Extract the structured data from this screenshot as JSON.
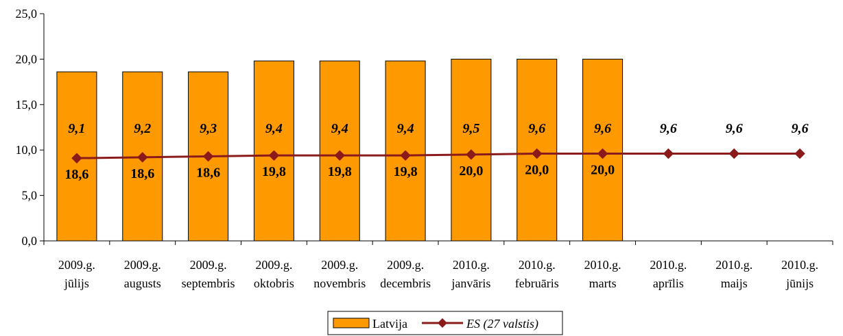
{
  "chart_data": {
    "type": "bar",
    "categories": [
      [
        "2009.g.",
        "jūlijs"
      ],
      [
        "2009.g.",
        "augusts"
      ],
      [
        "2009.g.",
        "septembris"
      ],
      [
        "2009.g.",
        "oktobris"
      ],
      [
        "2009.g.",
        "novembris"
      ],
      [
        "2009.g.",
        "decembris"
      ],
      [
        "2010.g.",
        "janvāris"
      ],
      [
        "2010.g.",
        "februāris"
      ],
      [
        "2010.g.",
        "marts"
      ],
      [
        "2010.g.",
        "aprīlis"
      ],
      [
        "2010.g.",
        "maijs"
      ],
      [
        "2010.g.",
        "jūnijs"
      ]
    ],
    "series": [
      {
        "name": "Latvija",
        "type": "bar",
        "color": "#FF9900",
        "values": [
          18.6,
          18.6,
          18.6,
          19.8,
          19.8,
          19.8,
          20.0,
          20.0,
          20.0,
          null,
          null,
          null
        ],
        "labels": [
          "18,6",
          "18,6",
          "18,6",
          "19,8",
          "19,8",
          "19,8",
          "20,0",
          "20,0",
          "20,0",
          null,
          null,
          null
        ]
      },
      {
        "name": "ES (27 valstis)",
        "type": "line",
        "marker": "diamond",
        "color": "#8B1A1A",
        "values": [
          9.1,
          9.2,
          9.3,
          9.4,
          9.4,
          9.4,
          9.5,
          9.6,
          9.6,
          9.6,
          9.6,
          9.6
        ],
        "labels": [
          "9,1",
          "9,2",
          "9,3",
          "9,4",
          "9,4",
          "9,4",
          "9,5",
          "9,6",
          "9,6",
          "9,6",
          "9,6",
          "9,6"
        ]
      }
    ],
    "ylim": [
      0,
      25
    ],
    "yticks": [
      "0,0",
      "5,0",
      "10,0",
      "15,0",
      "20,0",
      "25,0"
    ],
    "ytick_values": [
      0,
      5,
      10,
      15,
      20,
      25
    ],
    "grid": false,
    "legend": "bottom-center"
  }
}
